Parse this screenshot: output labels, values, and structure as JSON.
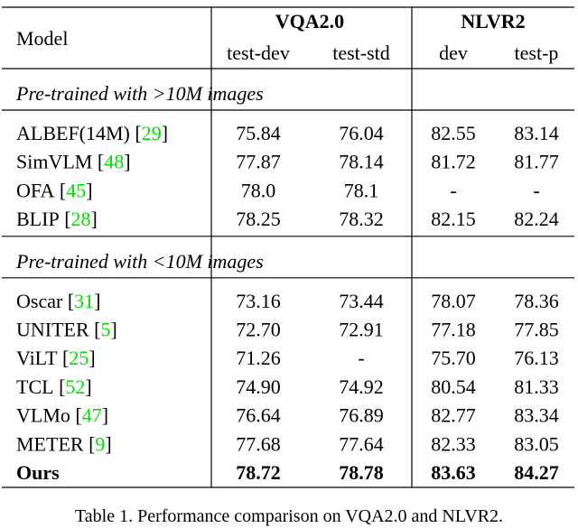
{
  "table": {
    "headers": {
      "model": "Model",
      "groups": [
        "VQA2.0",
        "NLVR2"
      ],
      "columns": [
        "test-dev",
        "test-std",
        "dev",
        "test-p"
      ]
    },
    "sections": [
      {
        "title": "Pre-trained with >10M images",
        "rows": [
          {
            "model": "ALBEF(14M)",
            "ref": [
              "[",
              "29",
              "]"
            ],
            "values": [
              "75.84",
              "76.04",
              "82.55",
              "83.14"
            ]
          },
          {
            "model": "SimVLM",
            "ref": [
              "[",
              "48",
              "]"
            ],
            "values": [
              "77.87",
              "78.14",
              "81.72",
              "81.77"
            ]
          },
          {
            "model": "OFA",
            "ref": [
              "[",
              "45",
              "]"
            ],
            "values": [
              "78.0",
              "78.1",
              "-",
              "-"
            ]
          },
          {
            "model": "BLIP",
            "ref": [
              "[",
              "28",
              "]"
            ],
            "values": [
              "78.25",
              "78.32",
              "82.15",
              "82.24"
            ]
          }
        ]
      },
      {
        "title": "Pre-trained with <10M images",
        "rows": [
          {
            "model": "Oscar",
            "ref": [
              "[",
              "31",
              "]"
            ],
            "values": [
              "73.16",
              "73.44",
              "78.07",
              "78.36"
            ]
          },
          {
            "model": "UNITER",
            "ref": [
              "[",
              "5",
              "]"
            ],
            "values": [
              "72.70",
              "72.91",
              "77.18",
              "77.85"
            ]
          },
          {
            "model": "ViLT",
            "ref": [
              "[",
              "25",
              "]"
            ],
            "values": [
              "71.26",
              "-",
              "75.70",
              "76.13"
            ]
          },
          {
            "model": "TCL",
            "ref": [
              "[",
              "52",
              "]"
            ],
            "values": [
              "74.90",
              "74.92",
              "80.54",
              "81.33"
            ]
          },
          {
            "model": "VLMo",
            "ref": [
              "[",
              "47",
              "]"
            ],
            "values": [
              "76.64",
              "76.89",
              "82.77",
              "83.34"
            ]
          },
          {
            "model": "METER",
            "ref": [
              "[",
              "9",
              "]"
            ],
            "values": [
              "77.68",
              "77.64",
              "82.33",
              "83.05"
            ]
          },
          {
            "model": "Ours",
            "values": [
              "78.72",
              "78.78",
              "83.63",
              "84.27"
            ],
            "bold": true
          }
        ]
      }
    ],
    "caption": "Table 1. Performance comparison on VQA2.0 and NLVR2."
  }
}
